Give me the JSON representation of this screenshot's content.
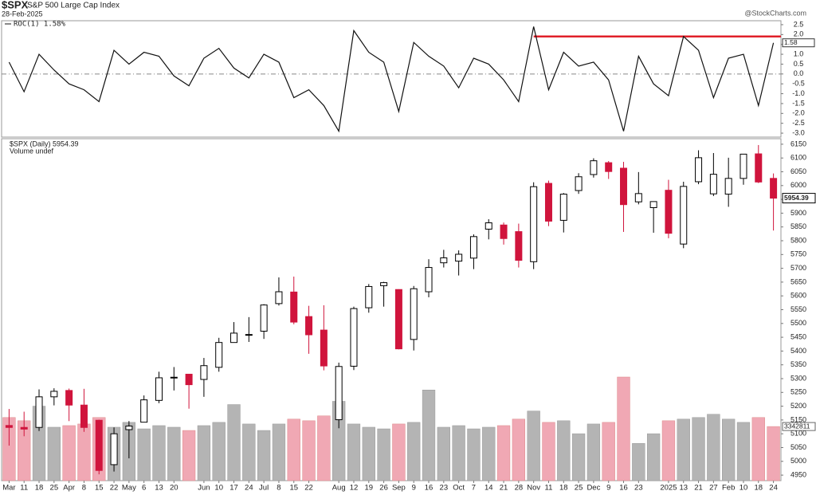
{
  "header": {
    "symbol": "$SPX",
    "name": "S&P 500 Large Cap Index",
    "date": "28-Feb-2025",
    "watermark": "@StockCharts.com"
  },
  "chart_data": [
    {
      "type": "line",
      "legend": "ROC(1) 1.58%",
      "color": "#111111",
      "values": [
        0.6,
        -0.9,
        1.0,
        0.2,
        -0.5,
        -0.8,
        -1.4,
        1.2,
        0.5,
        1.1,
        0.9,
        -0.1,
        -0.6,
        0.8,
        1.3,
        0.3,
        -0.2,
        1.0,
        0.6,
        -1.2,
        -0.8,
        -1.6,
        -2.9,
        2.2,
        1.1,
        0.6,
        -1.9,
        1.6,
        0.9,
        0.4,
        -0.7,
        0.8,
        0.5,
        -0.3,
        -1.4,
        2.4,
        -0.8,
        1.1,
        0.4,
        0.6,
        -0.3,
        -2.9,
        0.9,
        -0.5,
        -1.1,
        1.9,
        1.2,
        -1.2,
        0.8,
        1.0,
        -1.6,
        1.58
      ],
      "ylim": [
        -3.2,
        2.7
      ],
      "yticks": [
        2.5,
        {
          "value": 2,
          "label": "2.0"
        },
        1.5,
        {
          "value": 1,
          "label": "1.0"
        },
        0.5,
        {
          "value": 0,
          "label": "0.0"
        },
        -0.5,
        {
          "value": -1,
          "label": "-1.0"
        },
        -1.5,
        {
          "value": -2,
          "label": "-2.0"
        },
        -2.5,
        {
          "value": -3,
          "label": "-3.0"
        }
      ],
      "zero_line": true,
      "hline": {
        "value": 1.9,
        "color": "#e0202a",
        "from": 35
      }
    },
    {
      "type": "candlestick",
      "legend": "$SPX (Daily) 5954.39",
      "volume_legend": "Volume undef",
      "categories": [
        "Mar",
        "11",
        "18",
        "25",
        "Apr",
        "8",
        "15",
        "22",
        "May",
        "6",
        "13",
        "20",
        null,
        "Jun",
        "10",
        "17",
        "24",
        "Jul",
        "8",
        "15",
        "22",
        null,
        "Aug",
        "12",
        "19",
        "26",
        "Sep",
        "9",
        "16",
        "23",
        "Oct",
        "7",
        "14",
        "21",
        "28",
        "Nov",
        "11",
        "18",
        "25",
        "Dec",
        "9",
        "16",
        "23",
        null,
        "2025",
        "13",
        "21",
        "27",
        "Feb",
        "10",
        "18",
        "24"
      ],
      "open": [
        5130,
        5123,
        5123,
        5234,
        5257,
        5204,
        5149,
        4988,
        5115,
        5142,
        5221,
        5305,
        5316,
        5297,
        5341,
        5431,
        5460,
        5472,
        5572,
        5614,
        5525,
        5476,
        5151,
        5345,
        5557,
        5637,
        5623,
        5442,
        5615,
        5720,
        5726,
        5737,
        5842,
        5857,
        5833,
        5724,
        6008,
        5874,
        5982,
        6040,
        6083,
        6063,
        5941,
        5920,
        5983,
        5788,
        6014,
        5970,
        5969,
        6026,
        6115,
        6026
      ],
      "high": [
        5190,
        5180,
        5261,
        5265,
        5264,
        5263,
        5151,
        5123,
        5146,
        5239,
        5325,
        5342,
        5316,
        5375,
        5448,
        5505,
        5523,
        5570,
        5667,
        5670,
        5564,
        5566,
        5358,
        5561,
        5643,
        5651,
        5624,
        5636,
        5733,
        5767,
        5765,
        5823,
        5878,
        5866,
        5862,
        6012,
        6018,
        5973,
        6045,
        6099,
        6089,
        6086,
        6049,
        5941,
        6021,
        6014,
        6128,
        6118,
        6101,
        6111,
        6147,
        6044
      ],
      "low": [
        5057,
        5091,
        5110,
        5203,
        5146,
        5107,
        4953,
        4963,
        5011,
        5142,
        5211,
        5257,
        5191,
        5234,
        5325,
        5432,
        5433,
        5444,
        5565,
        5497,
        5390,
        5330,
        5120,
        5331,
        5539,
        5561,
        5406,
        5402,
        5595,
        5703,
        5674,
        5697,
        5805,
        5786,
        5703,
        5697,
        5853,
        5830,
        5970,
        6029,
        6024,
        5832,
        5932,
        5829,
        5809,
        5773,
        6005,
        5962,
        5923,
        6003,
        6009,
        5837
      ],
      "close": [
        5123,
        5117,
        5234,
        5254,
        5204,
        5123,
        4967,
        5100,
        5128,
        5223,
        5303,
        5305,
        5278,
        5347,
        5431,
        5465,
        5460,
        5567,
        5615,
        5505,
        5459,
        5346,
        5344,
        5554,
        5634,
        5648,
        5408,
        5626,
        5703,
        5738,
        5751,
        5815,
        5865,
        5808,
        5729,
        5996,
        5871,
        5969,
        6032,
        6090,
        6051,
        5931,
        5971,
        5942,
        5827,
        5997,
        6101,
        6041,
        6026,
        6114,
        6013,
        5954.39
      ],
      "volume": [
        3900000,
        3700000,
        4600000,
        3300000,
        3400000,
        3500000,
        3900000,
        3300000,
        3600000,
        3200000,
        3400000,
        3300000,
        3100000,
        3400000,
        3600000,
        4700000,
        3500000,
        3100000,
        3500000,
        3800000,
        3700000,
        4000000,
        4900000,
        3500000,
        3300000,
        3200000,
        3500000,
        3600000,
        5600000,
        3300000,
        3400000,
        3200000,
        3300000,
        3400000,
        3800000,
        4300000,
        3600000,
        3700000,
        2900000,
        3500000,
        3600000,
        6400000,
        2300000,
        2900000,
        3700000,
        3800000,
        3900000,
        4100000,
        3800000,
        3600000,
        3900000,
        3342811
      ],
      "up_color": "#b4b4b4",
      "down_color": "#d0143c",
      "down_volume_color": "#f0a8b4",
      "ylim": [
        4930,
        6170
      ],
      "yticks": [
        4950,
        5000,
        5050,
        5100,
        5150,
        5200,
        5250,
        5300,
        5350,
        5400,
        5450,
        5500,
        5550,
        5600,
        5650,
        5700,
        5750,
        5800,
        5850,
        5900,
        5950,
        6000,
        6050,
        6100,
        6150
      ]
    }
  ]
}
